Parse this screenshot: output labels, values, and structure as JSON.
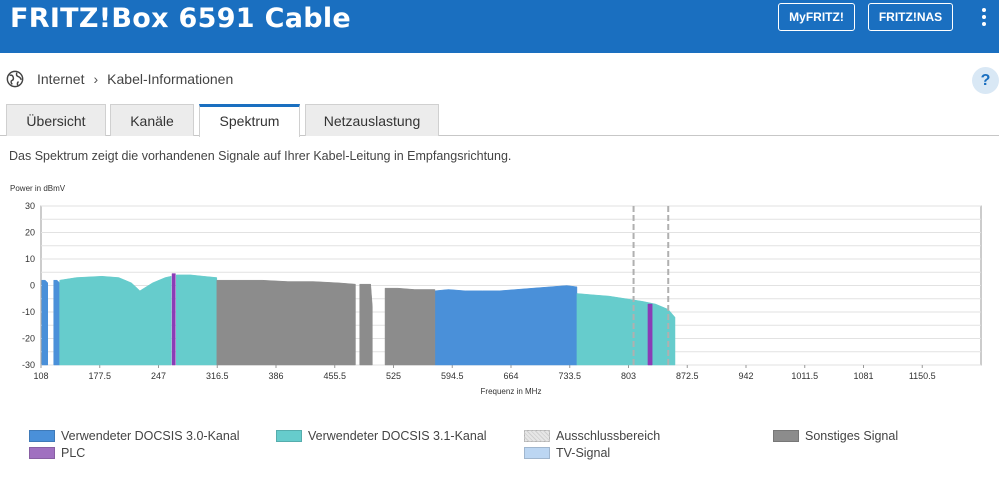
{
  "header": {
    "brand": "FRITZ!Box 6591 Cable",
    "myfritz_label": "MyFRITZ!",
    "nas_label": "FRITZ!NAS",
    "menu_icon": "more-vertical-icon",
    "color": "#1a6fc0"
  },
  "breadcrumb": {
    "icon": "globe-icon",
    "items": [
      "Internet",
      "Kabel-Informationen"
    ],
    "help_label": "?"
  },
  "tabs": [
    {
      "label": "Übersicht",
      "active": false
    },
    {
      "label": "Kanäle",
      "active": false
    },
    {
      "label": "Spektrum",
      "active": true
    },
    {
      "label": "Netzauslastung",
      "active": false
    }
  ],
  "description": "Das Spektrum zeigt die vorhandenen Signale auf Ihrer Kabel-Leitung in Empfangsrichtung.",
  "chart_data": {
    "type": "area",
    "ylabel": "Power in dBmV",
    "xlabel": "Frequenz in MHz",
    "ylim": [
      -30,
      30
    ],
    "xlim": [
      108,
      1220
    ],
    "y_ticks": [
      30,
      20,
      10,
      0,
      -10,
      -20,
      -30
    ],
    "x_ticks": [
      "108",
      "177.5",
      "247",
      "316.5",
      "386",
      "455.5",
      "525",
      "594.5",
      "664",
      "733.5",
      "803",
      "872.5",
      "942",
      "1011.5",
      "1081",
      "1150.5"
    ],
    "grid": true,
    "series": [
      {
        "name": "Verwendeter DOCSIS 3.0-Kanal",
        "color": "#4a90d9",
        "segments": [
          {
            "x": [
              109,
              113,
              116
            ],
            "y": [
              2,
              2,
              1
            ]
          },
          {
            "x": [
              123,
              127,
              130
            ],
            "y": [
              2,
              2,
              1
            ]
          },
          {
            "x": [
              574,
              590,
              610,
              630,
              650,
              670,
              690,
              710,
              730,
              742
            ],
            "y": [
              -2,
              -1.5,
              -2,
              -2,
              -2,
              -1.5,
              -1,
              -0.5,
              0,
              -0.5
            ]
          }
        ]
      },
      {
        "name": "Verwendeter DOCSIS 3.1-Kanal",
        "color": "#66cccc",
        "segments": [
          {
            "x": [
              130,
              150,
              180,
              200,
              215,
              225,
              240,
              255,
              262
            ],
            "y": [
              2,
              3,
              3.5,
              3,
              1,
              -2,
              1,
              3,
              3.5
            ]
          },
          {
            "x": [
              268,
              285,
              300,
              316
            ],
            "y": [
              4,
              4,
              3.5,
              3
            ]
          },
          {
            "x": [
              742,
              760,
              780,
              800,
              820,
              835,
              850,
              858
            ],
            "y": [
              -3,
              -3.5,
              -4,
              -5,
              -6,
              -7,
              -9,
              -12
            ]
          }
        ]
      },
      {
        "name": "Ausschlussbereich",
        "color": "#dddddd",
        "segments": [
          {
            "x": [
              808,
              810
            ],
            "y": [
              30,
              30
            ]
          },
          {
            "x": [
              849,
              851
            ],
            "y": [
              30,
              30
            ]
          }
        ]
      },
      {
        "name": "Sonstiges Signal",
        "color": "#8c8c8c",
        "segments": [
          {
            "x": [
              316,
              340,
              370,
              400,
              430,
              460,
              480
            ],
            "y": [
              2,
              2,
              2,
              1.5,
              1.5,
              1,
              0.5
            ]
          },
          {
            "x": [
              485,
              498,
              500
            ],
            "y": [
              0.5,
              0.5,
              -8
            ]
          },
          {
            "x": [
              515,
              530,
              550,
              574
            ],
            "y": [
              -1,
              -1,
              -1.5,
              -1.5
            ]
          }
        ]
      },
      {
        "name": "PLC",
        "color": "#8a3db6",
        "segments": [
          {
            "x": [
              263,
              267
            ],
            "y": [
              4.5,
              4.5
            ]
          },
          {
            "x": [
              826,
              831
            ],
            "y": [
              -7,
              -7
            ]
          }
        ]
      },
      {
        "name": "TV-Signal",
        "color": "#bcd6f2",
        "segments": []
      }
    ]
  },
  "legend": {
    "items": [
      {
        "label": "Verwendeter DOCSIS 3.0-Kanal",
        "color": "#4a90d9"
      },
      {
        "label": "Verwendeter DOCSIS 3.1-Kanal",
        "color": "#66cccc"
      },
      {
        "label": "Ausschlussbereich",
        "color": "#e4e4e4"
      },
      {
        "label": "Sonstiges Signal",
        "color": "#8c8c8c"
      },
      {
        "label": "PLC",
        "color": "#a070c0"
      },
      {
        "label": "TV-Signal",
        "color": "#bcd6f2"
      }
    ]
  }
}
